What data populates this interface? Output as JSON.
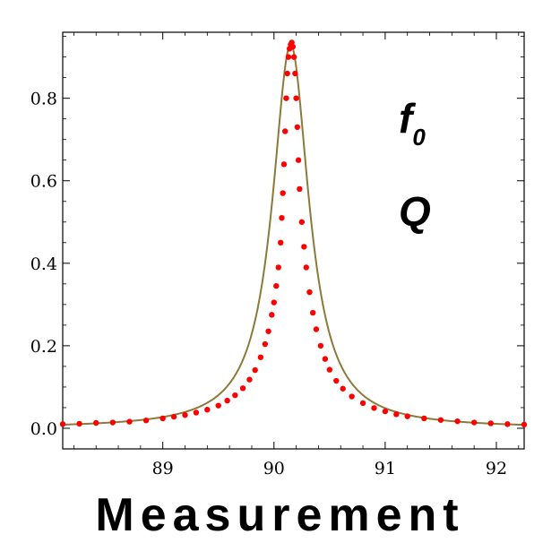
{
  "chart_data": {
    "type": "scatter",
    "title": "",
    "xlabel": "Measurement",
    "ylabel": "",
    "xlim": [
      88.1,
      92.25
    ],
    "ylim": [
      -0.05,
      0.96
    ],
    "x_ticks": [
      89,
      90,
      91,
      92
    ],
    "x_tick_labels": [
      "89",
      "90",
      "91",
      "92"
    ],
    "y_ticks": [
      0.0,
      0.2,
      0.4,
      0.6,
      0.8
    ],
    "y_tick_labels": [
      "0.0",
      "0.2",
      "0.4",
      "0.6",
      "0.8"
    ],
    "grid": false,
    "annotations": [
      {
        "text": "f",
        "sub": "0"
      },
      {
        "text": "Q"
      }
    ],
    "series": [
      {
        "kind": "fit-line",
        "color": "#8b7a3a",
        "model": "lorentzian",
        "center": 90.15,
        "half_width": 0.2,
        "peak": 0.93,
        "baseline": 0.0
      },
      {
        "kind": "points",
        "color": "#ff0000",
        "points": [
          [
            88.1,
            0.01
          ],
          [
            88.25,
            0.011
          ],
          [
            88.4,
            0.013
          ],
          [
            88.55,
            0.014
          ],
          [
            88.7,
            0.016
          ],
          [
            88.85,
            0.019
          ],
          [
            89.0,
            0.024
          ],
          [
            89.1,
            0.028
          ],
          [
            89.2,
            0.032
          ],
          [
            89.3,
            0.038
          ],
          [
            89.4,
            0.045
          ],
          [
            89.5,
            0.055
          ],
          [
            89.58,
            0.067
          ],
          [
            89.65,
            0.08
          ],
          [
            89.72,
            0.097
          ],
          [
            89.78,
            0.118
          ],
          [
            89.83,
            0.141
          ],
          [
            89.88,
            0.172
          ],
          [
            89.92,
            0.204
          ],
          [
            89.95,
            0.235
          ],
          [
            89.98,
            0.275
          ],
          [
            90.0,
            0.305
          ],
          [
            90.02,
            0.345
          ],
          [
            90.04,
            0.39
          ],
          [
            90.06,
            0.45
          ],
          [
            90.07,
            0.51
          ],
          [
            90.08,
            0.57
          ],
          [
            90.09,
            0.64
          ],
          [
            90.1,
            0.72
          ],
          [
            90.11,
            0.8
          ],
          [
            90.12,
            0.86
          ],
          [
            90.13,
            0.9
          ],
          [
            90.14,
            0.92
          ],
          [
            90.15,
            0.93
          ],
          [
            90.16,
            0.935
          ],
          [
            90.17,
            0.925
          ],
          [
            90.18,
            0.9
          ],
          [
            90.19,
            0.86
          ],
          [
            90.2,
            0.8
          ],
          [
            90.21,
            0.73
          ],
          [
            90.22,
            0.65
          ],
          [
            90.23,
            0.58
          ],
          [
            90.25,
            0.5
          ],
          [
            90.27,
            0.44
          ],
          [
            90.29,
            0.39
          ],
          [
            90.32,
            0.33
          ],
          [
            90.35,
            0.28
          ],
          [
            90.38,
            0.24
          ],
          [
            90.42,
            0.2
          ],
          [
            90.46,
            0.168
          ],
          [
            90.5,
            0.142
          ],
          [
            90.56,
            0.115
          ],
          [
            90.62,
            0.096
          ],
          [
            90.7,
            0.077
          ],
          [
            90.8,
            0.061
          ],
          [
            90.9,
            0.049
          ],
          [
            91.0,
            0.041
          ],
          [
            91.1,
            0.034
          ],
          [
            91.2,
            0.029
          ],
          [
            91.35,
            0.024
          ],
          [
            91.5,
            0.02
          ],
          [
            91.65,
            0.017
          ],
          [
            91.8,
            0.014
          ],
          [
            91.95,
            0.012
          ],
          [
            92.1,
            0.01
          ],
          [
            92.25,
            0.009
          ]
        ]
      }
    ]
  }
}
